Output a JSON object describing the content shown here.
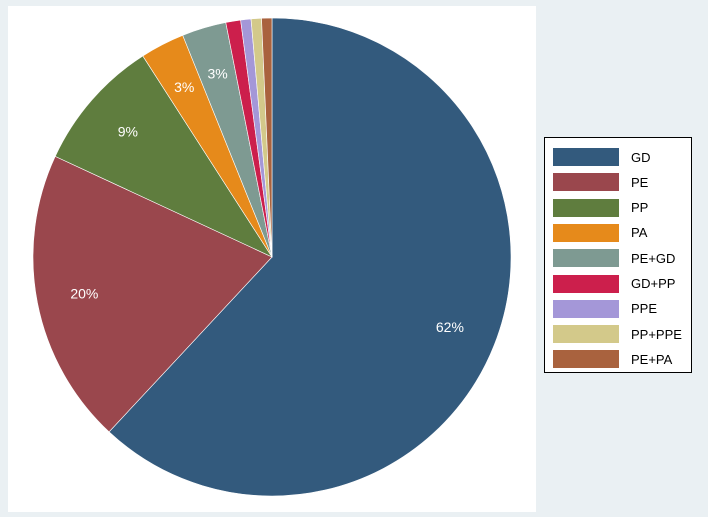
{
  "chart_data": {
    "type": "pie",
    "title": "",
    "slices": [
      {
        "label": "GD",
        "value": 62,
        "display": "62%",
        "color": "#335a7d"
      },
      {
        "label": "PE",
        "value": 20,
        "display": "20%",
        "color": "#9a474d"
      },
      {
        "label": "PP",
        "value": 9,
        "display": "9%",
        "color": "#5f7d3e"
      },
      {
        "label": "PA",
        "value": 3,
        "display": "3%",
        "color": "#e68a1b"
      },
      {
        "label": "PE+GD",
        "value": 3,
        "display": "3%",
        "color": "#7e9a92"
      },
      {
        "label": "GD+PP",
        "value": 1,
        "display": "",
        "color": "#cc1f4c"
      },
      {
        "label": "PPE",
        "value": 0.7,
        "display": "",
        "color": "#a497d8"
      },
      {
        "label": "PP+PPE",
        "value": 0.7,
        "display": "",
        "color": "#d3c98a"
      },
      {
        "label": "PE+PA",
        "value": 0.7,
        "display": "",
        "color": "#a9623e"
      }
    ],
    "start_angle_deg": 0,
    "direction": "clockwise",
    "legend_position": "right"
  }
}
